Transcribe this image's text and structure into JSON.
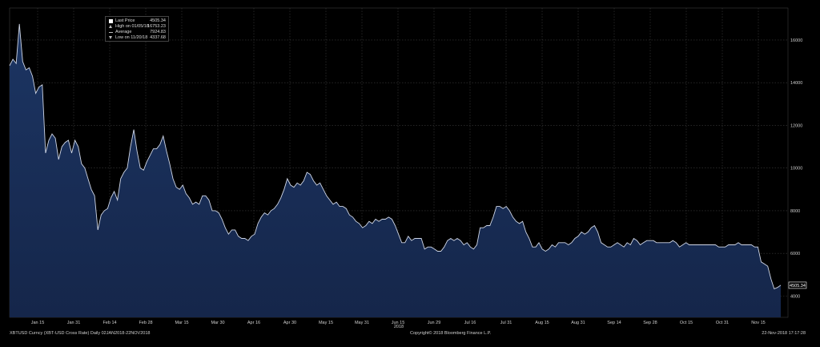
{
  "chart_data": {
    "type": "area",
    "title": "",
    "xlabel": "",
    "ylabel": "",
    "year_label": "2018",
    "x_ticks": [
      "Jan 15",
      "Jan 31",
      "Feb 14",
      "Feb 28",
      "Mar 15",
      "Mar 30",
      "Apr 16",
      "Apr 30",
      "May 15",
      "May 31",
      "Jun 15",
      "Jun 29",
      "Jul 16",
      "Jul 31",
      "Aug 15",
      "Aug 31",
      "Sep 14",
      "Sep 28",
      "Oct 15",
      "Oct 31",
      "Nov 15"
    ],
    "y_ticks": [
      4000,
      6000,
      8000,
      10000,
      12000,
      14000,
      16000
    ],
    "ylim": [
      3000,
      17500
    ],
    "last_price_label": "4505.34",
    "grid": true,
    "legend": [
      {
        "name": "Last Price",
        "value": "4505.34",
        "color": "#ffffff",
        "marker": "square"
      },
      {
        "name": "High on 01/05/18",
        "value": "16753.23",
        "color": "#bbbbbb",
        "marker": "up"
      },
      {
        "name": "Average",
        "value": "7924.83",
        "color": "#bbbbbb",
        "marker": "dash"
      },
      {
        "name": "Low on 11/20/18",
        "value": "4337.68",
        "color": "#bbbbbb",
        "marker": "down"
      }
    ],
    "line_color": "#cfd6e6",
    "fill_color": "#15264a",
    "series": [
      {
        "values": [
          [
            0,
            14800
          ],
          [
            3,
            15100
          ],
          [
            6,
            14900
          ],
          [
            9,
            16753
          ],
          [
            12,
            15000
          ],
          [
            15,
            14600
          ],
          [
            18,
            14700
          ],
          [
            21,
            14300
          ],
          [
            24,
            13500
          ],
          [
            27,
            13800
          ],
          [
            30,
            13900
          ],
          [
            33,
            10700
          ],
          [
            36,
            11300
          ],
          [
            39,
            11600
          ],
          [
            42,
            11400
          ],
          [
            45,
            10400
          ],
          [
            48,
            11000
          ],
          [
            51,
            11200
          ],
          [
            54,
            11300
          ],
          [
            57,
            10700
          ],
          [
            60,
            11300
          ],
          [
            63,
            11000
          ],
          [
            66,
            10200
          ],
          [
            69,
            10000
          ],
          [
            72,
            9500
          ],
          [
            75,
            9000
          ],
          [
            78,
            8700
          ],
          [
            81,
            7100
          ],
          [
            84,
            7800
          ],
          [
            87,
            8000
          ],
          [
            90,
            8100
          ],
          [
            93,
            8600
          ],
          [
            96,
            8900
          ],
          [
            99,
            8500
          ],
          [
            102,
            9500
          ],
          [
            105,
            9800
          ],
          [
            108,
            10000
          ],
          [
            111,
            11000
          ],
          [
            114,
            11800
          ],
          [
            117,
            10800
          ],
          [
            120,
            10000
          ],
          [
            123,
            9900
          ],
          [
            126,
            10300
          ],
          [
            129,
            10600
          ],
          [
            132,
            10900
          ],
          [
            135,
            10900
          ],
          [
            138,
            11100
          ],
          [
            141,
            11500
          ],
          [
            144,
            10800
          ],
          [
            147,
            10200
          ],
          [
            150,
            9500
          ],
          [
            153,
            9100
          ],
          [
            156,
            9000
          ],
          [
            159,
            9200
          ],
          [
            162,
            8800
          ],
          [
            165,
            8600
          ],
          [
            168,
            8300
          ],
          [
            171,
            8400
          ],
          [
            174,
            8300
          ],
          [
            177,
            8700
          ],
          [
            180,
            8700
          ],
          [
            183,
            8500
          ],
          [
            186,
            8000
          ],
          [
            189,
            8000
          ],
          [
            192,
            7900
          ],
          [
            195,
            7600
          ],
          [
            198,
            7200
          ],
          [
            201,
            6900
          ],
          [
            204,
            7100
          ],
          [
            207,
            7100
          ],
          [
            210,
            6800
          ],
          [
            213,
            6700
          ],
          [
            216,
            6700
          ],
          [
            219,
            6600
          ],
          [
            222,
            6800
          ],
          [
            225,
            6900
          ],
          [
            228,
            7400
          ],
          [
            231,
            7700
          ],
          [
            234,
            7900
          ],
          [
            237,
            7800
          ],
          [
            240,
            8000
          ],
          [
            243,
            8100
          ],
          [
            246,
            8300
          ],
          [
            249,
            8600
          ],
          [
            252,
            9000
          ],
          [
            255,
            9500
          ],
          [
            258,
            9200
          ],
          [
            261,
            9100
          ],
          [
            264,
            9300
          ],
          [
            267,
            9200
          ],
          [
            270,
            9400
          ],
          [
            273,
            9800
          ],
          [
            276,
            9700
          ],
          [
            279,
            9400
          ],
          [
            282,
            9200
          ],
          [
            285,
            9300
          ],
          [
            288,
            9000
          ],
          [
            291,
            8700
          ],
          [
            294,
            8500
          ],
          [
            297,
            8300
          ],
          [
            300,
            8400
          ],
          [
            303,
            8200
          ],
          [
            306,
            8200
          ],
          [
            309,
            8100
          ],
          [
            312,
            7800
          ],
          [
            315,
            7700
          ],
          [
            318,
            7500
          ],
          [
            321,
            7400
          ],
          [
            324,
            7200
          ],
          [
            327,
            7300
          ],
          [
            330,
            7500
          ],
          [
            333,
            7400
          ],
          [
            336,
            7600
          ],
          [
            339,
            7500
          ],
          [
            342,
            7600
          ],
          [
            345,
            7600
          ],
          [
            348,
            7700
          ],
          [
            351,
            7600
          ],
          [
            354,
            7300
          ],
          [
            357,
            6900
          ],
          [
            360,
            6500
          ],
          [
            363,
            6500
          ],
          [
            366,
            6800
          ],
          [
            369,
            6600
          ],
          [
            372,
            6700
          ],
          [
            375,
            6700
          ],
          [
            378,
            6700
          ],
          [
            381,
            6200
          ],
          [
            384,
            6300
          ],
          [
            387,
            6300
          ],
          [
            390,
            6200
          ],
          [
            393,
            6100
          ],
          [
            396,
            6100
          ],
          [
            399,
            6300
          ],
          [
            402,
            6600
          ],
          [
            405,
            6700
          ],
          [
            408,
            6600
          ],
          [
            411,
            6700
          ],
          [
            414,
            6600
          ],
          [
            417,
            6400
          ],
          [
            420,
            6500
          ],
          [
            423,
            6300
          ],
          [
            426,
            6200
          ],
          [
            429,
            6400
          ],
          [
            432,
            7200
          ],
          [
            435,
            7200
          ],
          [
            438,
            7300
          ],
          [
            441,
            7300
          ],
          [
            444,
            7700
          ],
          [
            447,
            8200
          ],
          [
            450,
            8200
          ],
          [
            453,
            8100
          ],
          [
            456,
            8200
          ],
          [
            459,
            8000
          ],
          [
            462,
            7700
          ],
          [
            465,
            7500
          ],
          [
            468,
            7400
          ],
          [
            471,
            7500
          ],
          [
            474,
            7000
          ],
          [
            477,
            6700
          ],
          [
            480,
            6300
          ],
          [
            483,
            6300
          ],
          [
            486,
            6500
          ],
          [
            489,
            6200
          ],
          [
            492,
            6100
          ],
          [
            495,
            6200
          ],
          [
            498,
            6400
          ],
          [
            501,
            6300
          ],
          [
            504,
            6500
          ],
          [
            507,
            6500
          ],
          [
            510,
            6500
          ],
          [
            513,
            6400
          ],
          [
            516,
            6500
          ],
          [
            519,
            6700
          ],
          [
            522,
            6800
          ],
          [
            525,
            7000
          ],
          [
            528,
            6900
          ],
          [
            531,
            7000
          ],
          [
            534,
            7200
          ],
          [
            537,
            7300
          ],
          [
            540,
            7000
          ],
          [
            543,
            6500
          ],
          [
            546,
            6400
          ],
          [
            549,
            6300
          ],
          [
            552,
            6300
          ],
          [
            555,
            6400
          ],
          [
            558,
            6500
          ],
          [
            561,
            6400
          ],
          [
            564,
            6300
          ],
          [
            567,
            6500
          ],
          [
            570,
            6400
          ],
          [
            573,
            6700
          ],
          [
            576,
            6600
          ],
          [
            579,
            6400
          ],
          [
            582,
            6500
          ],
          [
            585,
            6600
          ],
          [
            588,
            6600
          ],
          [
            591,
            6600
          ],
          [
            594,
            6500
          ],
          [
            597,
            6500
          ],
          [
            600,
            6500
          ],
          [
            603,
            6500
          ],
          [
            606,
            6500
          ],
          [
            609,
            6600
          ],
          [
            612,
            6500
          ],
          [
            615,
            6300
          ],
          [
            618,
            6400
          ],
          [
            621,
            6500
          ],
          [
            624,
            6400
          ],
          [
            627,
            6400
          ],
          [
            630,
            6400
          ],
          [
            633,
            6400
          ],
          [
            636,
            6400
          ],
          [
            639,
            6400
          ],
          [
            642,
            6400
          ],
          [
            645,
            6400
          ],
          [
            648,
            6400
          ],
          [
            651,
            6300
          ],
          [
            654,
            6300
          ],
          [
            657,
            6300
          ],
          [
            660,
            6400
          ],
          [
            663,
            6400
          ],
          [
            666,
            6400
          ],
          [
            669,
            6500
          ],
          [
            672,
            6400
          ],
          [
            675,
            6400
          ],
          [
            678,
            6400
          ],
          [
            681,
            6400
          ],
          [
            684,
            6300
          ],
          [
            687,
            6300
          ],
          [
            690,
            5600
          ],
          [
            693,
            5500
          ],
          [
            696,
            5400
          ],
          [
            699,
            4800
          ],
          [
            702,
            4338
          ],
          [
            705,
            4400
          ],
          [
            708,
            4505
          ]
        ]
      }
    ]
  },
  "footer": {
    "left": "XBTUSD Curncy (XBT-USD Cross Rate)  Daily 02JAN2018-22NOV2018",
    "center": "Copyright© 2018 Bloomberg Finance L.P.",
    "right": "22-Nov-2018 17:17:28"
  }
}
